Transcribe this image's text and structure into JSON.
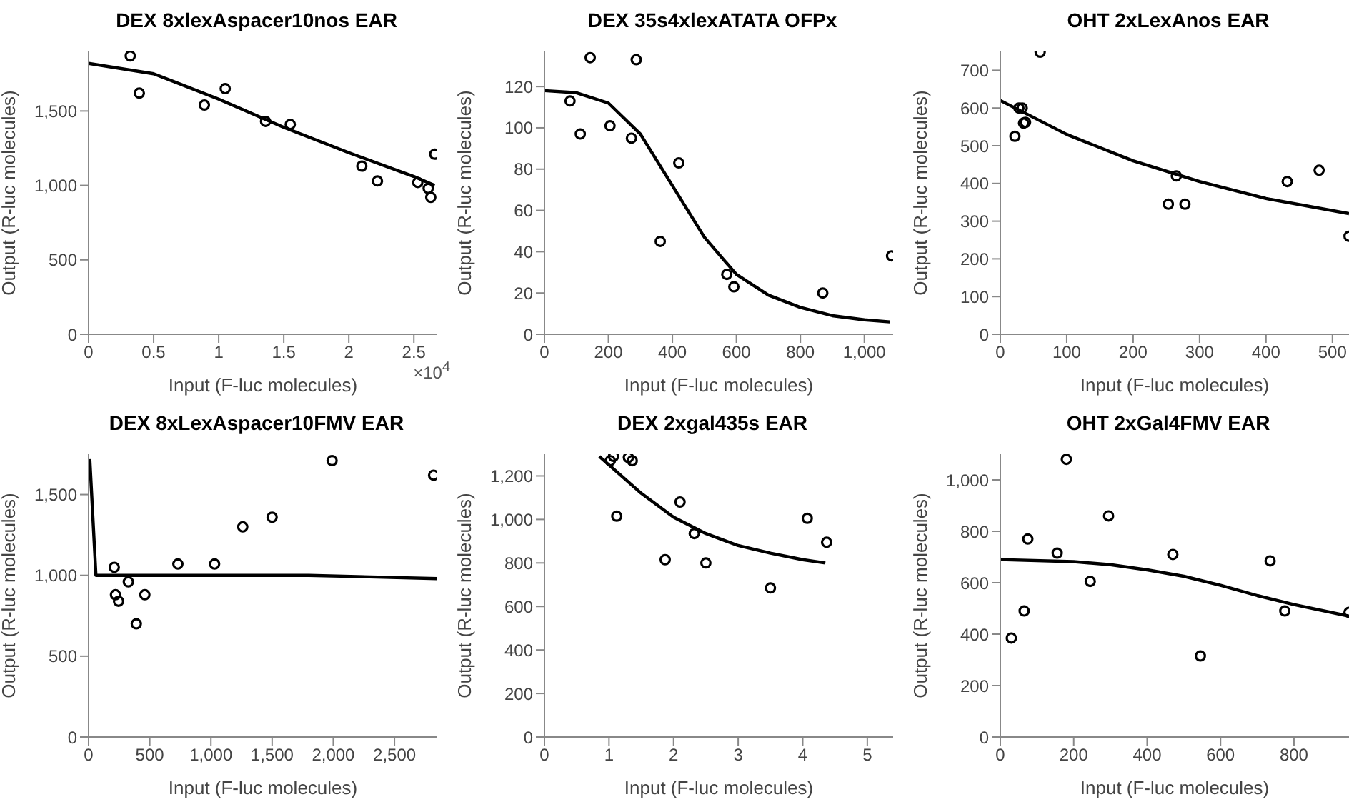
{
  "chart_data": [
    {
      "type": "scatter",
      "title": "DEX 8xlexAspacer10nos EAR",
      "xlabel": "Input (F-luc molecules)",
      "ylabel": "Output (R-luc molecules)",
      "annotations": [
        "×10$^{4}$"
      ],
      "xlim": [
        0,
        2.68
      ],
      "ylim": [
        0,
        1900
      ],
      "xticks": [
        0,
        0.5,
        1,
        1.5,
        2,
        2.5
      ],
      "yticks": [
        0,
        500,
        {
          "value": 1000,
          "label": "1,000"
        },
        {
          "value": 1500,
          "label": "1,500"
        }
      ],
      "grid": false,
      "legend": false,
      "series": [
        {
          "type": "scatter",
          "marker": "circle",
          "color": "#000000",
          "x": [
            0.32,
            0.39,
            0.89,
            1.05,
            1.36,
            1.55,
            2.1,
            2.22,
            2.53,
            2.61,
            2.63,
            2.66
          ],
          "values": [
            1870,
            1620,
            1540,
            1650,
            1430,
            1410,
            1130,
            1030,
            1020,
            980,
            920,
            1210
          ]
        },
        {
          "type": "line",
          "marker": "none",
          "color": "#000000",
          "x": [
            0,
            0.5,
            1,
            1.5,
            2,
            2.5,
            2.66
          ],
          "values": [
            1820,
            1750,
            1580,
            1390,
            1220,
            1060,
            1000
          ]
        }
      ]
    },
    {
      "type": "scatter",
      "title": "DEX 35s4xlexATATA OFPx",
      "xlabel": "Input (F-luc molecules)",
      "ylabel": "Output (R-luc molecules)",
      "xlim": [
        0,
        1090
      ],
      "ylim": [
        0,
        137
      ],
      "xticks": [
        0,
        200,
        400,
        600,
        800,
        {
          "value": 1000,
          "label": "1,000"
        }
      ],
      "yticks": [
        0,
        20,
        40,
        60,
        80,
        100,
        120
      ],
      "grid": false,
      "legend": false,
      "series": [
        {
          "type": "scatter",
          "marker": "circle",
          "color": "#000000",
          "x": [
            80,
            112,
            143,
            205,
            272,
            287,
            362,
            420,
            570,
            592,
            870,
            1085
          ],
          "values": [
            113,
            97,
            134,
            101,
            95,
            133,
            45,
            83,
            29,
            23,
            20,
            38
          ]
        },
        {
          "type": "line",
          "marker": "none",
          "color": "#000000",
          "x": [
            0,
            100,
            200,
            300,
            400,
            500,
            600,
            700,
            800,
            900,
            1000,
            1080
          ],
          "values": [
            118,
            117,
            112,
            97,
            72,
            47,
            29,
            19,
            13,
            9,
            7,
            6
          ]
        }
      ]
    },
    {
      "type": "scatter",
      "title": "OHT 2xLexAnos EAR",
      "xlabel": "Input (F-luc molecules)",
      "ylabel": "Output (R-luc molecules)",
      "xlim": [
        0,
        525
      ],
      "ylim": [
        0,
        750
      ],
      "xticks": [
        0,
        100,
        200,
        300,
        400,
        500
      ],
      "yticks": [
        0,
        100,
        200,
        300,
        400,
        500,
        600,
        700
      ],
      "grid": false,
      "legend": false,
      "series": [
        {
          "type": "scatter",
          "marker": "circle",
          "color": "#000000",
          "x": [
            22,
            28,
            33,
            35,
            38,
            60,
            253,
            265,
            278,
            432,
            480,
            525
          ],
          "values": [
            525,
            600,
            600,
            560,
            562,
            748,
            345,
            420,
            345,
            405,
            435,
            260
          ]
        },
        {
          "type": "line",
          "marker": "none",
          "color": "#000000",
          "x": [
            0,
            100,
            200,
            300,
            400,
            525
          ],
          "values": [
            620,
            530,
            460,
            405,
            360,
            320
          ]
        }
      ]
    },
    {
      "type": "scatter",
      "title": "DEX 8xLexAspacer10FMV EAR",
      "xlabel": "Input (F-luc molecules)",
      "ylabel": "Output (R-luc molecules)",
      "xlim": [
        0,
        2850
      ],
      "ylim": [
        0,
        1750
      ],
      "xticks": [
        0,
        500,
        {
          "value": 1000,
          "label": "1,000"
        },
        {
          "value": 1500,
          "label": "1,500"
        },
        {
          "value": 2000,
          "label": "2,000"
        },
        {
          "value": 2500,
          "label": "2,500"
        }
      ],
      "yticks": [
        0,
        500,
        {
          "value": 1000,
          "label": "1,000"
        },
        {
          "value": 1500,
          "label": "1,500"
        }
      ],
      "grid": false,
      "legend": false,
      "series": [
        {
          "type": "scatter",
          "marker": "circle",
          "color": "#000000",
          "x": [
            210,
            220,
            245,
            325,
            390,
            460,
            730,
            1030,
            1260,
            1500,
            1990,
            2820
          ],
          "values": [
            1050,
            880,
            840,
            960,
            700,
            880,
            1070,
            1070,
            1300,
            1360,
            1710,
            1620
          ]
        },
        {
          "type": "line",
          "marker": "none",
          "color": "#000000",
          "x": [
            10,
            60,
            1800,
            2850
          ],
          "values": [
            1720,
            1000,
            1000,
            980
          ]
        }
      ]
    },
    {
      "type": "scatter",
      "title": "DEX 2xgal435s EAR",
      "xlabel": "Input (F-luc molecules)",
      "ylabel": "Output (R-luc molecules)",
      "xlim": [
        0,
        5.4
      ],
      "ylim": [
        0,
        1300
      ],
      "xticks": [
        0,
        1,
        2,
        3,
        4,
        5
      ],
      "yticks": [
        0,
        200,
        400,
        600,
        800,
        {
          "value": 1000,
          "label": "1,000"
        },
        {
          "value": 1200,
          "label": "1,200"
        }
      ],
      "grid": false,
      "legend": false,
      "series": [
        {
          "type": "scatter",
          "marker": "circle",
          "color": "#000000",
          "x": [
            1.02,
            1.07,
            1.12,
            1.3,
            1.36,
            1.87,
            2.1,
            2.32,
            2.5,
            3.5,
            4.07,
            4.37
          ],
          "values": [
            1270,
            1290,
            1015,
            1285,
            1270,
            815,
            1080,
            935,
            800,
            685,
            1005,
            895
          ]
        },
        {
          "type": "line",
          "marker": "none",
          "color": "#000000",
          "x": [
            0.85,
            1.5,
            2,
            2.5,
            3,
            3.5,
            4,
            4.35
          ],
          "values": [
            1290,
            1120,
            1010,
            935,
            880,
            845,
            815,
            800
          ]
        }
      ]
    },
    {
      "type": "scatter",
      "title": "OHT 2xGal4FMV EAR",
      "xlabel": "Input (F-luc molecules)",
      "ylabel": "Output (R-luc molecules)",
      "xlim": [
        0,
        950
      ],
      "ylim": [
        0,
        1100
      ],
      "xticks": [
        0,
        200,
        400,
        600,
        800
      ],
      "yticks": [
        0,
        200,
        400,
        600,
        800,
        {
          "value": 1000,
          "label": "1,000"
        }
      ],
      "grid": false,
      "legend": false,
      "series": [
        {
          "type": "scatter",
          "marker": "circle",
          "color": "#000000",
          "x": [
            30,
            65,
            75,
            155,
            180,
            245,
            295,
            470,
            545,
            735,
            775,
            950
          ],
          "values": [
            385,
            490,
            770,
            715,
            1080,
            605,
            860,
            710,
            315,
            685,
            490,
            485
          ]
        },
        {
          "type": "line",
          "marker": "none",
          "color": "#000000",
          "x": [
            0,
            200,
            300,
            400,
            500,
            600,
            700,
            800,
            950
          ],
          "values": [
            690,
            682,
            670,
            650,
            625,
            590,
            550,
            515,
            470
          ]
        }
      ]
    }
  ]
}
